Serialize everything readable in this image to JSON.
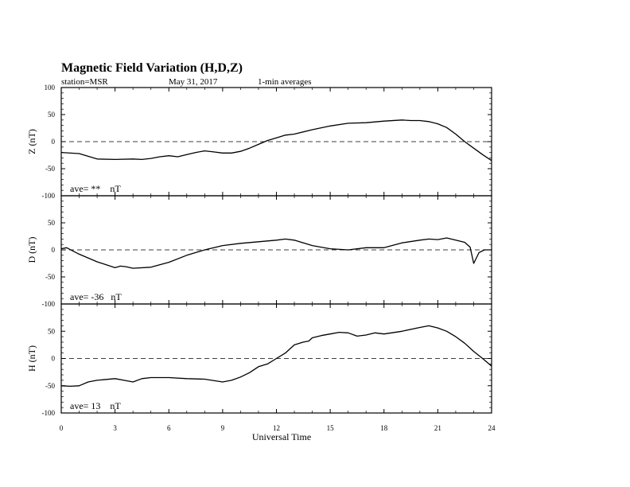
{
  "header": {
    "title": "Magnetic Field Variation (H,D,Z)",
    "station": "station=MSR",
    "date": "May 31, 2017",
    "averaging": "1-min averages"
  },
  "xaxis": {
    "label": "Universal Time",
    "range": [
      0,
      24
    ],
    "ticks": [
      0,
      3,
      6,
      9,
      12,
      15,
      18,
      21,
      24
    ]
  },
  "chart_data": [
    {
      "type": "line",
      "component": "Z",
      "ylabel": "Z (nT)",
      "ylim": [
        -100,
        100
      ],
      "yticks": [
        -100,
        -50,
        0,
        50,
        100
      ],
      "ave_label": "ave= **    nT",
      "zero_line": "dashed",
      "color": "#000000",
      "x": [
        0,
        1,
        1.5,
        2,
        3,
        4,
        4.5,
        5,
        5.5,
        6,
        6.5,
        7,
        7.5,
        8,
        8.5,
        9,
        9.5,
        10,
        10.5,
        11,
        11.5,
        12,
        12.5,
        13,
        14,
        15,
        16,
        17,
        18,
        19,
        19.5,
        20,
        20.5,
        21,
        21.5,
        22,
        22.5,
        23,
        23.5,
        24
      ],
      "y": [
        -20,
        -22,
        -27,
        -32,
        -33,
        -32,
        -33,
        -31,
        -28,
        -26,
        -28,
        -24,
        -20,
        -17,
        -19,
        -21,
        -21,
        -18,
        -12,
        -5,
        2,
        7,
        12,
        14,
        22,
        29,
        34,
        35,
        38,
        40,
        39,
        39,
        37,
        33,
        26,
        14,
        0,
        -12,
        -24,
        -35
      ]
    },
    {
      "type": "line",
      "component": "D",
      "ylabel": "D (nT)",
      "ylim": [
        -100,
        100
      ],
      "yticks": [
        -100,
        -50,
        0,
        50,
        100
      ],
      "ave_label": "ave= -36   nT",
      "zero_line": "dashed",
      "color": "#000000",
      "x": [
        0,
        0.3,
        1,
        2,
        3,
        3.3,
        3.6,
        4,
        5,
        6,
        7,
        8,
        9,
        10,
        11,
        12,
        12.5,
        13,
        14,
        15,
        16,
        17,
        18,
        19,
        20,
        20.5,
        21,
        21.5,
        22,
        22.5,
        22.8,
        23,
        23.3,
        23.6,
        24
      ],
      "y": [
        2,
        4,
        -8,
        -22,
        -33,
        -30,
        -31,
        -34,
        -32,
        -23,
        -10,
        0,
        8,
        12,
        15,
        18,
        20,
        18,
        8,
        2,
        0,
        4,
        4,
        13,
        18,
        20,
        19,
        22,
        18,
        14,
        5,
        -25,
        -5,
        0,
        0
      ]
    },
    {
      "type": "line",
      "component": "H",
      "ylabel": "H (nT)",
      "ylim": [
        -100,
        100
      ],
      "yticks": [
        -100,
        -50,
        0,
        50,
        100
      ],
      "ave_label": "ave= 13    nT",
      "zero_line": "dashed",
      "color": "#000000",
      "x": [
        0,
        0.5,
        1,
        1.5,
        2,
        3,
        3.5,
        4,
        4.5,
        5,
        6,
        7,
        8,
        9,
        9.5,
        10,
        10.5,
        11,
        11.5,
        12,
        12.5,
        13,
        13.5,
        13.8,
        14,
        14.5,
        15,
        15.5,
        16,
        16.5,
        17,
        17.5,
        18,
        19,
        20,
        20.5,
        21,
        21.5,
        22,
        22.5,
        23,
        23.5,
        24
      ],
      "y": [
        -50,
        -51,
        -50,
        -43,
        -40,
        -37,
        -40,
        -43,
        -37,
        -35,
        -35,
        -37,
        -38,
        -43,
        -40,
        -34,
        -26,
        -15,
        -10,
        0,
        10,
        25,
        30,
        32,
        38,
        42,
        45,
        48,
        47,
        41,
        43,
        47,
        45,
        50,
        57,
        60,
        56,
        50,
        40,
        28,
        13,
        0,
        -14
      ]
    }
  ]
}
